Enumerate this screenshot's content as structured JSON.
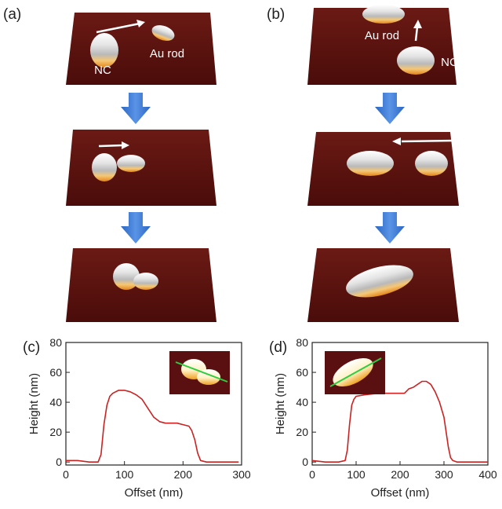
{
  "panels": {
    "a": {
      "label": "(a)",
      "nc_label": "NC",
      "rod_label": "Au rod"
    },
    "b": {
      "label": "(b)",
      "nc_label": "NC",
      "rod_label": "Au rod"
    }
  },
  "colors": {
    "surface": "#5a1010",
    "particle_top": "#f0f0f0",
    "particle_base": "#e89a1f",
    "flow_arrow": "#3a78d2",
    "profile_line": "#cc2222",
    "inset_scanline": "#2ecc40"
  },
  "chart_data": [
    {
      "type": "line",
      "panel_label": "(c)",
      "xlabel": "Offset (nm)",
      "ylabel": "Height (nm)",
      "xlim": [
        0,
        300
      ],
      "ylim": [
        -2,
        80
      ],
      "xticks": [
        0,
        100,
        200,
        300
      ],
      "yticks": [
        0,
        20,
        40,
        60,
        80
      ],
      "series": [
        {
          "color": "#cc2222",
          "x": [
            0,
            20,
            40,
            55,
            60,
            65,
            70,
            75,
            80,
            90,
            100,
            110,
            120,
            130,
            140,
            150,
            160,
            170,
            180,
            190,
            200,
            210,
            215,
            220,
            225,
            230,
            240,
            260,
            280,
            295
          ],
          "y": [
            1,
            1,
            0,
            0,
            5,
            25,
            38,
            44,
            46,
            48,
            48,
            47,
            45,
            42,
            36,
            30,
            27,
            26,
            26,
            26,
            25,
            24,
            21,
            15,
            6,
            1,
            0,
            0,
            0,
            0
          ]
        }
      ]
    },
    {
      "type": "line",
      "panel_label": "(d)",
      "xlabel": "Offset (nm)",
      "ylabel": "Height (nm)",
      "xlim": [
        0,
        400
      ],
      "ylim": [
        -2,
        80
      ],
      "xticks": [
        0,
        100,
        200,
        300,
        400
      ],
      "yticks": [
        0,
        20,
        40,
        60,
        80
      ],
      "series": [
        {
          "color": "#cc2222",
          "x": [
            0,
            30,
            60,
            75,
            80,
            85,
            90,
            95,
            100,
            120,
            150,
            180,
            200,
            210,
            220,
            230,
            240,
            250,
            260,
            270,
            280,
            290,
            300,
            305,
            310,
            315,
            320,
            330,
            350,
            380,
            400
          ],
          "y": [
            1,
            0,
            0,
            1,
            8,
            25,
            38,
            42,
            44,
            45,
            46,
            46,
            46,
            46,
            49,
            50,
            52,
            54,
            54,
            52,
            47,
            40,
            30,
            20,
            10,
            3,
            1,
            0,
            0,
            0,
            0
          ]
        }
      ]
    }
  ]
}
